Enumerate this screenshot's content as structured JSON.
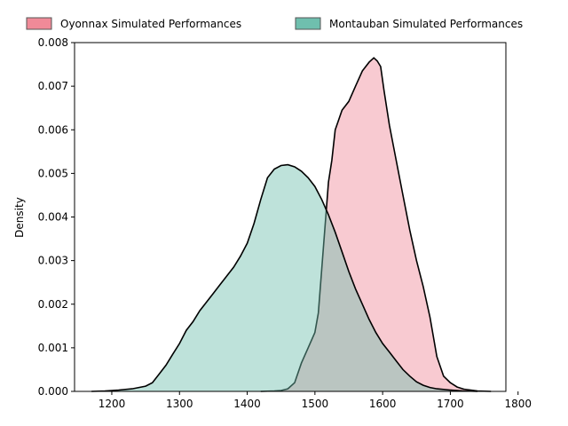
{
  "chart_data": {
    "type": "area",
    "title": "",
    "xlabel": "",
    "ylabel": "Density",
    "xlim": [
      1145,
      1782
    ],
    "ylim": [
      0,
      0.008
    ],
    "x_ticks": [
      1200,
      1300,
      1400,
      1500,
      1600,
      1700,
      1800
    ],
    "y_ticks": [
      0.0,
      0.001,
      0.002,
      0.003,
      0.004,
      0.005,
      0.006,
      0.007,
      0.008
    ],
    "x_tick_labels": [
      "1200",
      "1300",
      "1400",
      "1500",
      "1600",
      "1700",
      "1800"
    ],
    "y_tick_labels": [
      "0.000",
      "0.001",
      "0.002",
      "0.003",
      "0.004",
      "0.005",
      "0.006",
      "0.007",
      "0.008"
    ],
    "grid": false,
    "legend_placement": "top-outside",
    "series": [
      {
        "name": "Oyonnax Simulated Performances",
        "color": "#f08a98",
        "points": [
          [
            1420,
            0
          ],
          [
            1440,
            1e-05
          ],
          [
            1450,
            2e-05
          ],
          [
            1460,
            6e-05
          ],
          [
            1470,
            0.0002
          ],
          [
            1480,
            0.00065
          ],
          [
            1490,
            0.001
          ],
          [
            1500,
            0.00135
          ],
          [
            1505,
            0.0018
          ],
          [
            1510,
            0.0028
          ],
          [
            1515,
            0.0038
          ],
          [
            1520,
            0.0048
          ],
          [
            1525,
            0.0053
          ],
          [
            1530,
            0.006
          ],
          [
            1540,
            0.00645
          ],
          [
            1550,
            0.00665
          ],
          [
            1560,
            0.007
          ],
          [
            1570,
            0.00735
          ],
          [
            1580,
            0.00755
          ],
          [
            1587,
            0.00765
          ],
          [
            1592,
            0.00758
          ],
          [
            1597,
            0.00745
          ],
          [
            1602,
            0.0069
          ],
          [
            1610,
            0.0061
          ],
          [
            1620,
            0.0053
          ],
          [
            1630,
            0.0045
          ],
          [
            1640,
            0.0037
          ],
          [
            1650,
            0.003
          ],
          [
            1660,
            0.0024
          ],
          [
            1670,
            0.0017
          ],
          [
            1680,
            0.0008
          ],
          [
            1690,
            0.00035
          ],
          [
            1700,
            0.0002
          ],
          [
            1710,
            0.0001
          ],
          [
            1720,
            5e-05
          ],
          [
            1740,
            1e-05
          ],
          [
            1760,
            0
          ]
        ]
      },
      {
        "name": "Montauban Simulated Performances",
        "color": "#6fbfae",
        "points": [
          [
            1170,
            0
          ],
          [
            1190,
            1e-05
          ],
          [
            1210,
            3e-05
          ],
          [
            1230,
            6e-05
          ],
          [
            1250,
            0.00012
          ],
          [
            1260,
            0.0002
          ],
          [
            1270,
            0.0004
          ],
          [
            1280,
            0.0006
          ],
          [
            1290,
            0.00085
          ],
          [
            1300,
            0.0011
          ],
          [
            1310,
            0.0014
          ],
          [
            1320,
            0.0016
          ],
          [
            1330,
            0.00185
          ],
          [
            1340,
            0.00205
          ],
          [
            1350,
            0.00225
          ],
          [
            1360,
            0.00245
          ],
          [
            1370,
            0.00265
          ],
          [
            1380,
            0.00285
          ],
          [
            1390,
            0.0031
          ],
          [
            1400,
            0.0034
          ],
          [
            1410,
            0.00385
          ],
          [
            1420,
            0.0044
          ],
          [
            1430,
            0.0049
          ],
          [
            1440,
            0.0051
          ],
          [
            1450,
            0.00518
          ],
          [
            1460,
            0.0052
          ],
          [
            1470,
            0.00515
          ],
          [
            1480,
            0.00505
          ],
          [
            1490,
            0.0049
          ],
          [
            1500,
            0.0047
          ],
          [
            1510,
            0.0044
          ],
          [
            1520,
            0.00405
          ],
          [
            1530,
            0.00365
          ],
          [
            1540,
            0.0032
          ],
          [
            1550,
            0.00275
          ],
          [
            1560,
            0.00235
          ],
          [
            1570,
            0.002
          ],
          [
            1580,
            0.00165
          ],
          [
            1590,
            0.00135
          ],
          [
            1600,
            0.0011
          ],
          [
            1610,
            0.0009
          ],
          [
            1620,
            0.0007
          ],
          [
            1630,
            0.0005
          ],
          [
            1640,
            0.00035
          ],
          [
            1650,
            0.00022
          ],
          [
            1660,
            0.00014
          ],
          [
            1670,
            9e-05
          ],
          [
            1680,
            6e-05
          ],
          [
            1700,
            3e-05
          ],
          [
            1720,
            1e-05
          ],
          [
            1740,
            0
          ]
        ]
      }
    ]
  }
}
